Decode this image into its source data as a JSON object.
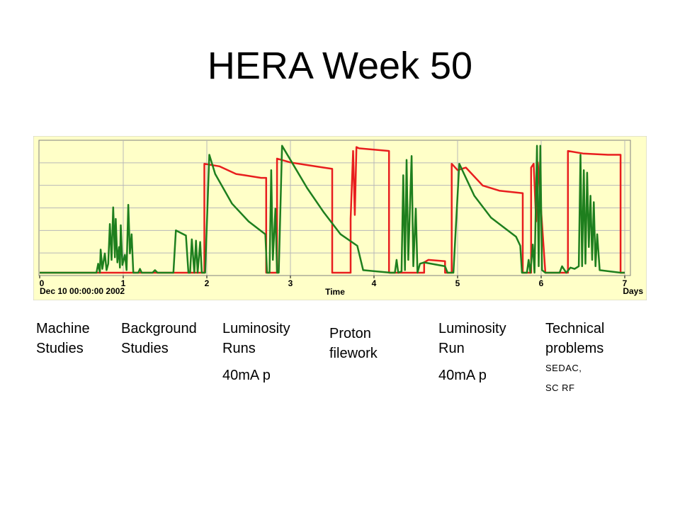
{
  "slide": {
    "title": "HERA Week 50"
  },
  "chart_data": {
    "type": "line",
    "x_ticks": [
      "0",
      "1",
      "2",
      "3",
      "4",
      "5",
      "6",
      "7"
    ],
    "start_label": "Dec 10 00:00:00 2002",
    "xlabel": "Time",
    "xunit": "Days",
    "xlim": [
      0,
      7
    ],
    "ylim": [
      0,
      1
    ],
    "grid": true,
    "background": "#ffffc8",
    "colors": {
      "red": "#e81e1e",
      "green": "#1e7f1e"
    },
    "series": [
      {
        "color": "red",
        "points": [
          [
            0,
            0
          ],
          [
            1.97,
            0
          ],
          [
            1.97,
            0.85
          ],
          [
            2.15,
            0.83
          ],
          [
            2.35,
            0.77
          ],
          [
            2.45,
            0.76
          ],
          [
            2.65,
            0.74
          ],
          [
            2.71,
            0.74
          ],
          [
            2.71,
            0
          ],
          [
            2.84,
            0
          ],
          [
            2.84,
            0.89
          ],
          [
            3.0,
            0.86
          ],
          [
            3.2,
            0.84
          ],
          [
            3.4,
            0.82
          ],
          [
            3.5,
            0.81
          ],
          [
            3.5,
            0
          ],
          [
            3.72,
            0
          ],
          [
            3.72,
            0.42
          ],
          [
            3.75,
            0.95
          ],
          [
            3.77,
            0.45
          ],
          [
            3.79,
            0.98
          ],
          [
            3.82,
            0.97
          ],
          [
            4.0,
            0.96
          ],
          [
            4.18,
            0.95
          ],
          [
            4.18,
            0
          ],
          [
            4.6,
            0
          ],
          [
            4.6,
            0.08
          ],
          [
            4.65,
            0.1
          ],
          [
            4.85,
            0.09
          ],
          [
            4.85,
            0
          ],
          [
            4.93,
            0
          ],
          [
            4.93,
            0.85
          ],
          [
            5.0,
            0.8
          ],
          [
            5.1,
            0.82
          ],
          [
            5.3,
            0.68
          ],
          [
            5.5,
            0.64
          ],
          [
            5.78,
            0.62
          ],
          [
            5.78,
            0
          ],
          [
            5.88,
            0
          ],
          [
            5.88,
            0.82
          ],
          [
            5.91,
            0.85
          ],
          [
            5.94,
            0.4
          ],
          [
            5.96,
            0.86
          ],
          [
            6.05,
            0
          ],
          [
            6.32,
            0
          ],
          [
            6.32,
            0.95
          ],
          [
            6.5,
            0.93
          ],
          [
            6.8,
            0.92
          ],
          [
            6.95,
            0.92
          ],
          [
            6.95,
            0
          ],
          [
            7,
            0
          ]
        ]
      },
      {
        "color": "green",
        "points": [
          [
            0,
            0
          ],
          [
            0.68,
            0
          ],
          [
            0.7,
            0.07
          ],
          [
            0.72,
            0
          ],
          [
            0.73,
            0.18
          ],
          [
            0.75,
            0.03
          ],
          [
            0.78,
            0.15
          ],
          [
            0.8,
            0.02
          ],
          [
            0.82,
            0.07
          ],
          [
            0.84,
            0.38
          ],
          [
            0.86,
            0.1
          ],
          [
            0.88,
            0.51
          ],
          [
            0.9,
            0.12
          ],
          [
            0.91,
            0.42
          ],
          [
            0.93,
            0.08
          ],
          [
            0.95,
            0.2
          ],
          [
            0.96,
            0.04
          ],
          [
            0.97,
            0.37
          ],
          [
            0.99,
            0.06
          ],
          [
            1.02,
            0.14
          ],
          [
            1.04,
            0.02
          ],
          [
            1.06,
            0.53
          ],
          [
            1.08,
            0.15
          ],
          [
            1.1,
            0.3
          ],
          [
            1.12,
            0
          ],
          [
            1.18,
            0
          ],
          [
            1.2,
            0.03
          ],
          [
            1.22,
            0
          ],
          [
            1.35,
            0
          ],
          [
            1.38,
            0.02
          ],
          [
            1.41,
            0
          ],
          [
            1.6,
            0
          ],
          [
            1.63,
            0.33
          ],
          [
            1.75,
            0.29
          ],
          [
            1.78,
            0
          ],
          [
            1.8,
            0
          ],
          [
            1.82,
            0.26
          ],
          [
            1.85,
            0
          ],
          [
            1.87,
            0.25
          ],
          [
            1.89,
            0
          ],
          [
            1.92,
            0.24
          ],
          [
            1.94,
            0
          ],
          [
            1.98,
            0
          ],
          [
            2.03,
            0.92
          ],
          [
            2.1,
            0.77
          ],
          [
            2.3,
            0.54
          ],
          [
            2.5,
            0.4
          ],
          [
            2.7,
            0.3
          ],
          [
            2.72,
            0
          ],
          [
            2.75,
            0
          ],
          [
            2.77,
            0.8
          ],
          [
            2.79,
            0.1
          ],
          [
            2.82,
            0.5
          ],
          [
            2.84,
            0
          ],
          [
            2.86,
            0
          ],
          [
            2.9,
            0.99
          ],
          [
            3.0,
            0.88
          ],
          [
            3.2,
            0.66
          ],
          [
            3.4,
            0.47
          ],
          [
            3.6,
            0.3
          ],
          [
            3.8,
            0.21
          ],
          [
            3.87,
            0.02
          ],
          [
            4.2,
            0
          ],
          [
            4.25,
            0
          ],
          [
            4.27,
            0.1
          ],
          [
            4.29,
            0
          ],
          [
            4.33,
            0.01
          ],
          [
            4.35,
            0.76
          ],
          [
            4.37,
            0.02
          ],
          [
            4.39,
            0.88
          ],
          [
            4.41,
            0.1
          ],
          [
            4.45,
            0.91
          ],
          [
            4.47,
            0.05
          ],
          [
            4.5,
            0.5
          ],
          [
            4.52,
            0
          ],
          [
            4.55,
            0.07
          ],
          [
            4.6,
            0.08
          ],
          [
            4.85,
            0.05
          ],
          [
            4.88,
            0
          ],
          [
            4.95,
            0
          ],
          [
            5.02,
            0.85
          ],
          [
            5.2,
            0.6
          ],
          [
            5.4,
            0.43
          ],
          [
            5.6,
            0.33
          ],
          [
            5.7,
            0.28
          ],
          [
            5.75,
            0.21
          ],
          [
            5.77,
            0
          ],
          [
            5.83,
            0
          ],
          [
            5.85,
            0.1
          ],
          [
            5.87,
            0
          ],
          [
            5.9,
            0.22
          ],
          [
            5.92,
            0
          ],
          [
            5.95,
            0.99
          ],
          [
            5.97,
            0.05
          ],
          [
            5.99,
            0.99
          ],
          [
            6.01,
            0.02
          ],
          [
            6.05,
            0
          ],
          [
            6.22,
            0
          ],
          [
            6.25,
            0.05
          ],
          [
            6.3,
            0
          ],
          [
            6.35,
            0.04
          ],
          [
            6.4,
            0.03
          ],
          [
            6.45,
            0.05
          ],
          [
            6.47,
            0.92
          ],
          [
            6.49,
            0.05
          ],
          [
            6.51,
            0.8
          ],
          [
            6.53,
            0.07
          ],
          [
            6.55,
            0.78
          ],
          [
            6.57,
            0.2
          ],
          [
            6.59,
            0.6
          ],
          [
            6.61,
            0.1
          ],
          [
            6.63,
            0.55
          ],
          [
            6.65,
            0.05
          ],
          [
            6.67,
            0.3
          ],
          [
            6.7,
            0.02
          ],
          [
            6.95,
            0
          ],
          [
            7,
            0
          ]
        ]
      }
    ]
  },
  "labels": [
    {
      "lines": [
        "Machine",
        "Studies"
      ]
    },
    {
      "lines": [
        "Background",
        "Studies"
      ]
    },
    {
      "lines": [
        "Luminosity",
        "Runs"
      ],
      "extra": [
        "40mA p"
      ]
    },
    {
      "lines": [
        "Proton",
        "filework"
      ]
    },
    {
      "lines": [
        "Luminosity",
        "Run"
      ],
      "extra": [
        "40mA p"
      ]
    },
    {
      "lines": [
        "Technical",
        "problems"
      ],
      "small": [
        "SEDAC,",
        "SC RF"
      ]
    }
  ]
}
